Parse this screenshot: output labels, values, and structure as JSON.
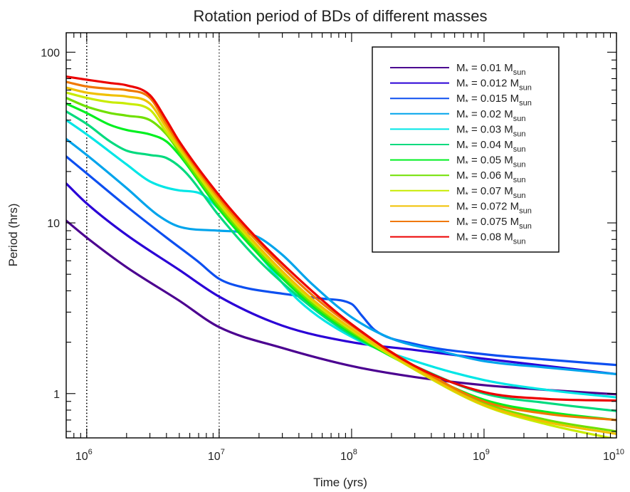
{
  "chart_data": {
    "type": "line",
    "title": "Rotation period of BDs of different masses",
    "xlabel": "Time (yrs)",
    "ylabel": "Period (hrs)",
    "xscale": "log",
    "yscale": "log",
    "xlim": [
      700000,
      10000000000
    ],
    "ylim": [
      0.55,
      130
    ],
    "x_tick_labels": [
      {
        "value": 1000000,
        "base": "10",
        "exp": "6"
      },
      {
        "value": 10000000,
        "base": "10",
        "exp": "7"
      },
      {
        "value": 100000000,
        "base": "10",
        "exp": "8"
      },
      {
        "value": 1000000000,
        "base": "10",
        "exp": "9"
      },
      {
        "value": 10000000000,
        "base": "10",
        "exp": "10"
      }
    ],
    "y_tick_labels": [
      {
        "value": 1,
        "label": "1"
      },
      {
        "value": 10,
        "label": "10"
      },
      {
        "value": 100,
        "label": "100"
      }
    ],
    "reference_lines": [
      {
        "x": 1000000,
        "style": "dotted"
      },
      {
        "x": 10000000,
        "style": "dotted"
      }
    ],
    "legend_position": "top-right",
    "grid": false,
    "series": [
      {
        "label_main": "M",
        "label_star": "*",
        "label_eq": " = 0.01 M",
        "label_unit": "sun",
        "color": "#4b0090",
        "points": [
          [
            700000,
            10.3
          ],
          [
            1000000,
            8.2
          ],
          [
            2000000,
            5.5
          ],
          [
            5000000,
            3.5
          ],
          [
            10000000,
            2.45
          ],
          [
            30000000,
            1.85
          ],
          [
            100000000,
            1.45
          ],
          [
            300000000,
            1.25
          ],
          [
            1000000000,
            1.12
          ],
          [
            3000000000,
            1.05
          ],
          [
            10000000000,
            0.99
          ]
        ]
      },
      {
        "label_main": "M",
        "label_star": "*",
        "label_eq": " = 0.012 M",
        "label_unit": "sun",
        "color": "#2a00d6",
        "points": [
          [
            700000,
            17
          ],
          [
            1000000,
            13
          ],
          [
            2000000,
            8.5
          ],
          [
            5000000,
            5.3
          ],
          [
            10000000,
            3.7
          ],
          [
            30000000,
            2.5
          ],
          [
            100000000,
            2.0
          ],
          [
            300000000,
            1.8
          ],
          [
            1000000000,
            1.6
          ],
          [
            3000000000,
            1.45
          ],
          [
            10000000000,
            1.3
          ]
        ]
      },
      {
        "label_main": "M",
        "label_star": "*",
        "label_eq": " = 0.015 M",
        "label_unit": "sun",
        "color": "#0d4ff0",
        "points": [
          [
            700000,
            24.5
          ],
          [
            1000000,
            19.5
          ],
          [
            2000000,
            12.5
          ],
          [
            4000000,
            8.2
          ],
          [
            7000000,
            5.9
          ],
          [
            10000000,
            4.7
          ],
          [
            15000000,
            4.2
          ],
          [
            30000000,
            3.85
          ],
          [
            60000000,
            3.6
          ],
          [
            100000000,
            3.35
          ],
          [
            120000000,
            2.85
          ],
          [
            150000000,
            2.35
          ],
          [
            300000000,
            1.95
          ],
          [
            1000000000,
            1.7
          ],
          [
            3000000000,
            1.58
          ],
          [
            10000000000,
            1.47
          ]
        ]
      },
      {
        "label_main": "M",
        "label_star": "*",
        "label_eq": " = 0.02 M",
        "label_unit": "sun",
        "color": "#00a4ec",
        "points": [
          [
            700000,
            31
          ],
          [
            1000000,
            25
          ],
          [
            2000000,
            16
          ],
          [
            3500000,
            11
          ],
          [
            5000000,
            9.5
          ],
          [
            10000000,
            9.0
          ],
          [
            15000000,
            8.8
          ],
          [
            20000000,
            8.2
          ],
          [
            30000000,
            6.5
          ],
          [
            50000000,
            4.4
          ],
          [
            100000000,
            2.8
          ],
          [
            200000000,
            2.1
          ],
          [
            500000000,
            1.75
          ],
          [
            1000000000,
            1.55
          ],
          [
            3000000000,
            1.42
          ],
          [
            10000000000,
            1.3
          ]
        ]
      },
      {
        "label_main": "M",
        "label_star": "*",
        "label_eq": " = 0.03 M",
        "label_unit": "sun",
        "color": "#00e6e6",
        "points": [
          [
            700000,
            40
          ],
          [
            1000000,
            33
          ],
          [
            2000000,
            22
          ],
          [
            3000000,
            17.5
          ],
          [
            5000000,
            15.5
          ],
          [
            7000000,
            15
          ],
          [
            10000000,
            12
          ],
          [
            20000000,
            6.5
          ],
          [
            40000000,
            3.5
          ],
          [
            100000000,
            2.15
          ],
          [
            300000000,
            1.55
          ],
          [
            1000000000,
            1.2
          ],
          [
            3000000000,
            1.05
          ],
          [
            10000000000,
            0.95
          ]
        ]
      },
      {
        "label_main": "M",
        "label_star": "*",
        "label_eq": " = 0.04 M",
        "label_unit": "sun",
        "color": "#00da7e",
        "points": [
          [
            700000,
            45
          ],
          [
            1000000,
            38
          ],
          [
            1500000,
            30
          ],
          [
            2000000,
            26.5
          ],
          [
            3000000,
            25
          ],
          [
            4000000,
            24
          ],
          [
            5500000,
            20
          ],
          [
            10000000,
            11
          ],
          [
            20000000,
            6
          ],
          [
            50000000,
            3.2
          ],
          [
            100000000,
            2.2
          ],
          [
            300000000,
            1.45
          ],
          [
            1000000000,
            1.0
          ],
          [
            3000000000,
            0.88
          ],
          [
            10000000000,
            0.79
          ]
        ]
      },
      {
        "label_main": "M",
        "label_star": "*",
        "label_eq": " = 0.05 M",
        "label_unit": "sun",
        "color": "#00f020",
        "points": [
          [
            700000,
            50
          ],
          [
            1000000,
            44
          ],
          [
            1500000,
            37.5
          ],
          [
            2000000,
            35
          ],
          [
            3000000,
            33
          ],
          [
            4000000,
            30
          ],
          [
            5000000,
            25
          ],
          [
            10000000,
            12
          ],
          [
            20000000,
            6.5
          ],
          [
            50000000,
            3.3
          ],
          [
            100000000,
            2.25
          ],
          [
            300000000,
            1.4
          ],
          [
            1000000000,
            0.92
          ],
          [
            3000000000,
            0.78
          ],
          [
            10000000000,
            0.7
          ]
        ]
      },
      {
        "label_main": "M",
        "label_star": "*",
        "label_eq": " = 0.06 M",
        "label_unit": "sun",
        "color": "#70e000",
        "points": [
          [
            700000,
            54
          ],
          [
            1000000,
            48
          ],
          [
            1500000,
            44
          ],
          [
            2000000,
            42.5
          ],
          [
            3000000,
            40
          ],
          [
            4000000,
            33
          ],
          [
            5000000,
            26
          ],
          [
            10000000,
            12.5
          ],
          [
            20000000,
            6.8
          ],
          [
            50000000,
            3.4
          ],
          [
            100000000,
            2.3
          ],
          [
            300000000,
            1.4
          ],
          [
            1000000000,
            0.88
          ],
          [
            3000000000,
            0.7
          ],
          [
            10000000000,
            0.6
          ]
        ]
      },
      {
        "label_main": "M",
        "label_star": "*",
        "label_eq": " = 0.07 M",
        "label_unit": "sun",
        "color": "#c8ec00",
        "points": [
          [
            700000,
            58
          ],
          [
            1000000,
            54
          ],
          [
            1500000,
            51
          ],
          [
            2000000,
            50
          ],
          [
            3000000,
            46
          ],
          [
            4000000,
            34
          ],
          [
            5000000,
            27
          ],
          [
            10000000,
            13
          ],
          [
            20000000,
            7
          ],
          [
            50000000,
            3.5
          ],
          [
            100000000,
            2.35
          ],
          [
            300000000,
            1.38
          ],
          [
            1000000000,
            0.85
          ],
          [
            3000000000,
            0.66
          ],
          [
            10000000000,
            0.54
          ]
        ]
      },
      {
        "label_main": "M",
        "label_star": "*",
        "label_eq": " = 0.072 M",
        "label_unit": "sun",
        "color": "#f0c000",
        "points": [
          [
            700000,
            62
          ],
          [
            1000000,
            58
          ],
          [
            1500000,
            56
          ],
          [
            2000000,
            55
          ],
          [
            3000000,
            50
          ],
          [
            4000000,
            36
          ],
          [
            5000000,
            28
          ],
          [
            10000000,
            13.5
          ],
          [
            20000000,
            7.2
          ],
          [
            50000000,
            3.6
          ],
          [
            100000000,
            2.4
          ],
          [
            300000000,
            1.4
          ],
          [
            1000000000,
            0.86
          ],
          [
            3000000000,
            0.68
          ],
          [
            10000000000,
            0.58
          ]
        ]
      },
      {
        "label_main": "M",
        "label_star": "*",
        "label_eq": " = 0.075 M",
        "label_unit": "sun",
        "color": "#f07800",
        "points": [
          [
            700000,
            67
          ],
          [
            1000000,
            63
          ],
          [
            1500000,
            61
          ],
          [
            2000000,
            60
          ],
          [
            3000000,
            54
          ],
          [
            4000000,
            38
          ],
          [
            5000000,
            29
          ],
          [
            10000000,
            14
          ],
          [
            20000000,
            7.6
          ],
          [
            50000000,
            3.8
          ],
          [
            100000000,
            2.5
          ],
          [
            300000000,
            1.45
          ],
          [
            1000000000,
            0.9
          ],
          [
            3000000000,
            0.76
          ],
          [
            10000000000,
            0.7
          ]
        ]
      },
      {
        "label_main": "M",
        "label_star": "*",
        "label_eq": " = 0.08 M",
        "label_unit": "sun",
        "color": "#ec0000",
        "points": [
          [
            700000,
            72
          ],
          [
            1000000,
            69
          ],
          [
            1500000,
            66
          ],
          [
            2000000,
            64
          ],
          [
            3000000,
            56
          ],
          [
            4000000,
            40
          ],
          [
            5000000,
            30
          ],
          [
            10000000,
            14.5
          ],
          [
            20000000,
            7.9
          ],
          [
            50000000,
            4.0
          ],
          [
            100000000,
            2.55
          ],
          [
            300000000,
            1.45
          ],
          [
            1000000000,
            1.02
          ],
          [
            3000000000,
            0.93
          ],
          [
            10000000000,
            0.91
          ]
        ]
      }
    ]
  }
}
